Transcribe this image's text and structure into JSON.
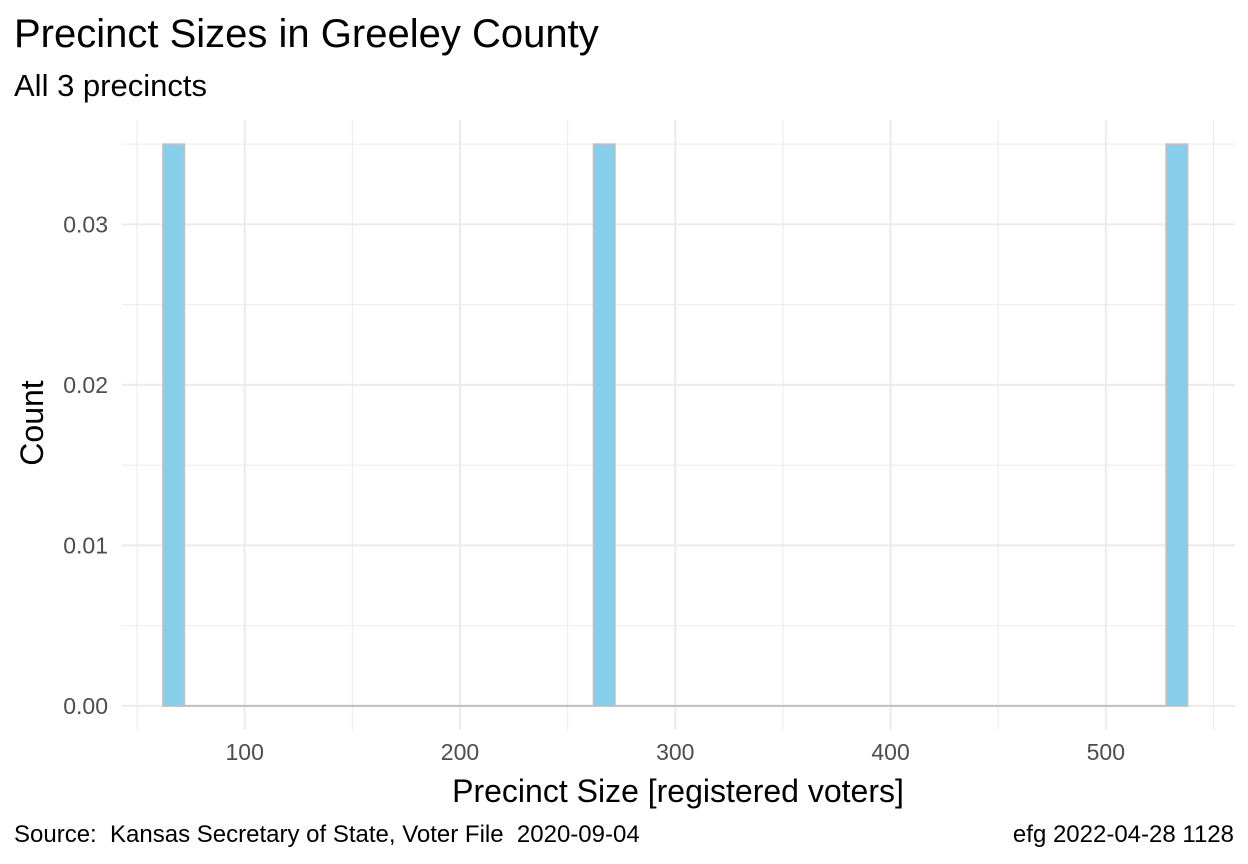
{
  "chart_data": {
    "type": "bar",
    "title": "Precinct Sizes in Greeley County",
    "subtitle": "All 3 precincts",
    "xlabel": "Precinct Size [registered voters]",
    "ylabel": "Count",
    "caption_left": "Source:  Kansas Secretary of State, Voter File  2020-09-04",
    "caption_right": "efg 2022-04-28 1128",
    "xlim": [
      43,
      560
    ],
    "ylim": [
      -0.0015,
      0.0365
    ],
    "x_ticks": [
      100,
      200,
      300,
      400,
      500
    ],
    "x_tick_labels": [
      "100",
      "200",
      "300",
      "400",
      "500"
    ],
    "y_ticks": [
      0.0,
      0.01,
      0.02,
      0.03
    ],
    "y_tick_labels": [
      "0.00",
      "0.01",
      "0.02",
      "0.03"
    ],
    "bars": [
      {
        "x_start": 62,
        "x_end": 72,
        "value": 0.035
      },
      {
        "x_start": 262,
        "x_end": 272,
        "value": 0.035
      },
      {
        "x_start": 528,
        "x_end": 538,
        "value": 0.035
      }
    ],
    "grid": true,
    "colors": {
      "bar_fill": "#87CEEB",
      "bar_outline": "#C0C0C0",
      "grid": "#EBEBEB",
      "tick_text": "#4D4D4D"
    }
  }
}
